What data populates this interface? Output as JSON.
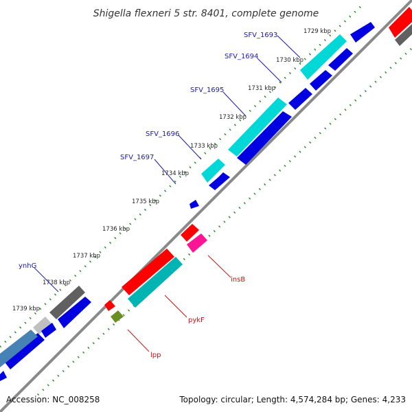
{
  "title": "Shigella flexneri 5 str. 8401, complete genome",
  "footer": {
    "accession": "Accession: NC_008258",
    "topology": "Topology: circular; Length: 4,574,284 bp; Genes: 4,233"
  },
  "ticks": [
    "1729 kbp",
    "1730 kbp",
    "1731 kbp",
    "1732 kbp",
    "1733 kbp",
    "1734 kbp",
    "1735 kbp",
    "1736 kbp",
    "1737 kbp",
    "1738 kbp",
    "1739 kbp"
  ],
  "gene_labels_upper": [
    "SFV_1693",
    "SFV_1694",
    "SFV_1695",
    "SFV_1696",
    "SFV_1697",
    "ynhG"
  ],
  "gene_labels_lower": [
    "insB",
    "pykF",
    "lpp"
  ],
  "colors": {
    "backbone": "#8a8a8a",
    "dots": "#2e8b2e",
    "cds_blue": "#0000e0",
    "cds_cyan": "#00d8d8",
    "cds_teal": "#00b4b4",
    "cds_red": "#ff0000",
    "cds_magenta": "#ff1493",
    "cds_olive": "#6b8e23",
    "cds_gray": "#606060",
    "cds_lightgray": "#c0c0c0",
    "cds_steel": "#4682b4",
    "label_blue": "#1a1aa8",
    "label_red": "#cc1111"
  }
}
